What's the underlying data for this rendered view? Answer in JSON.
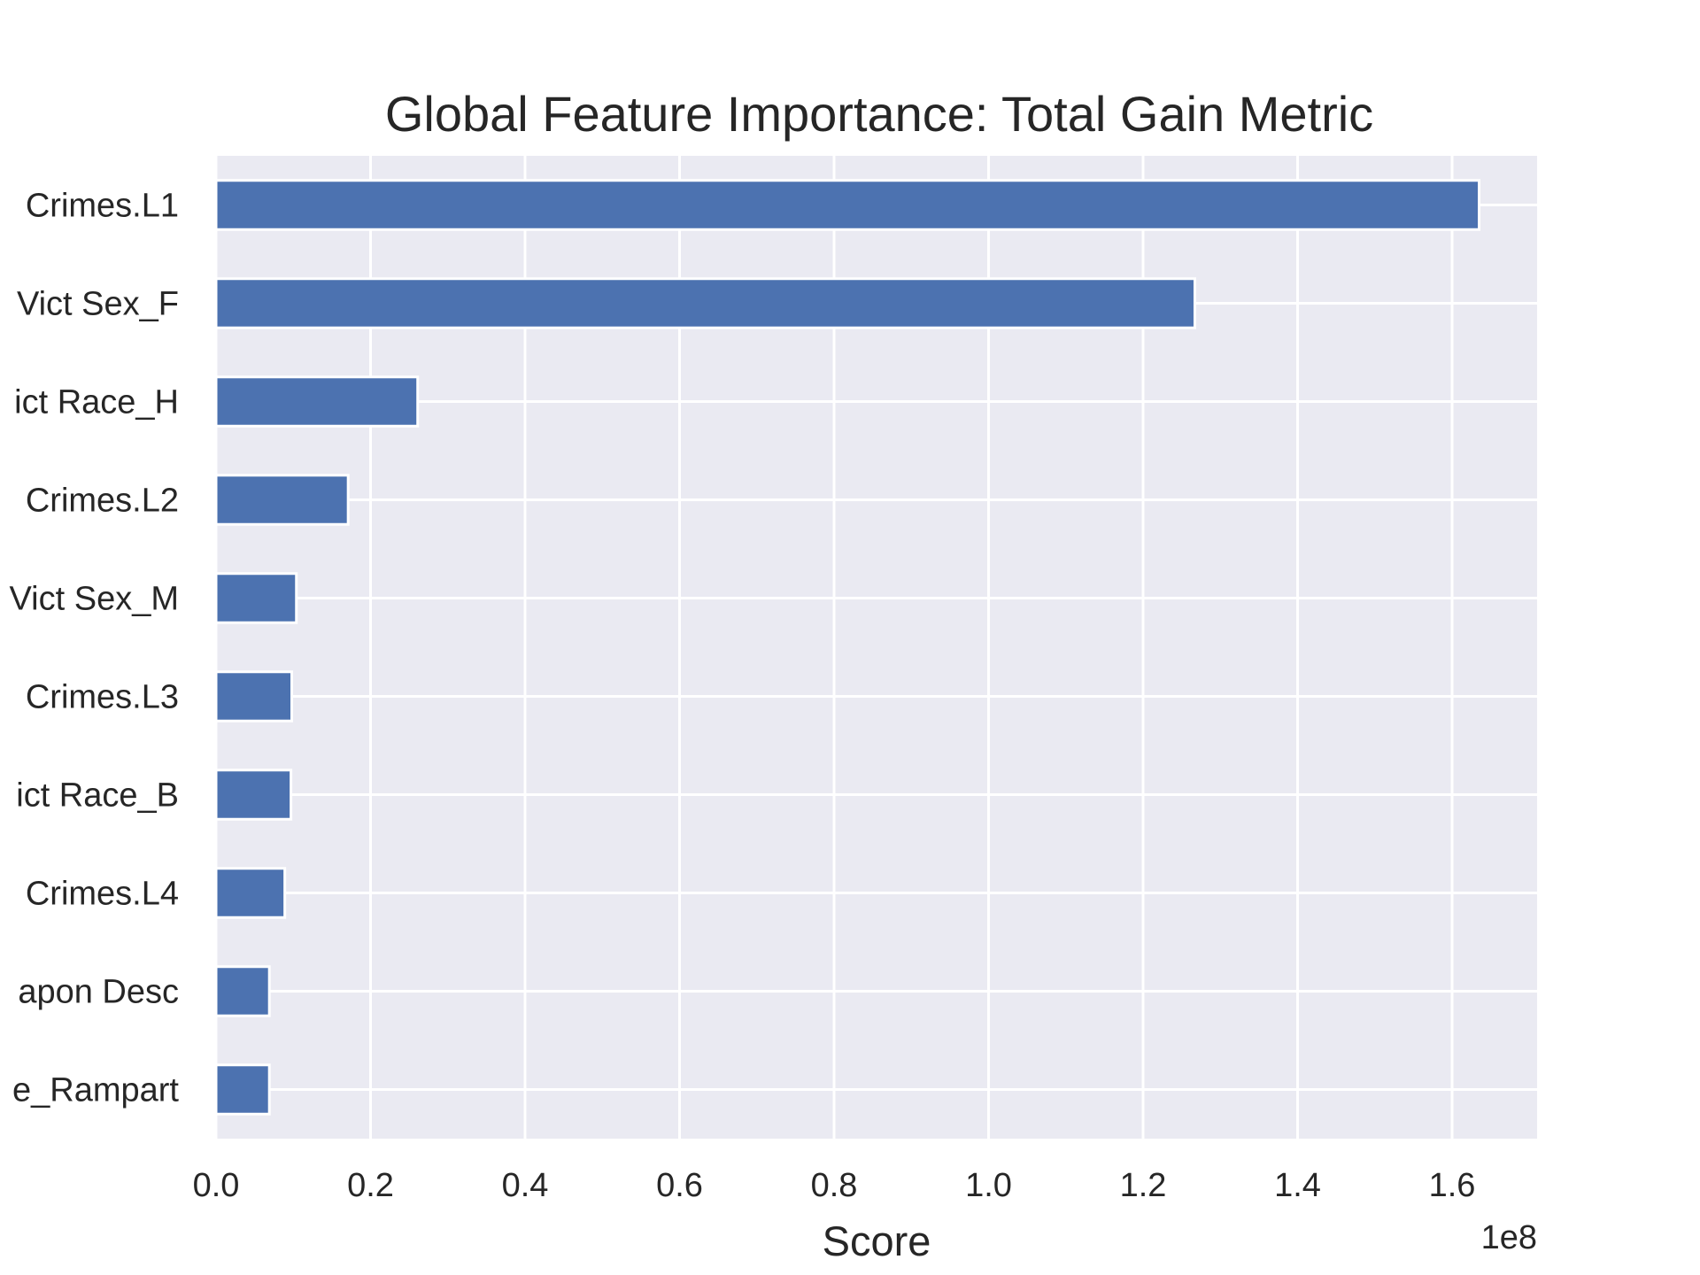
{
  "chart_data": {
    "type": "bar",
    "orientation": "horizontal",
    "title": "Global Feature Importance: Total Gain Metric",
    "xlabel": "Score",
    "ylabel": "",
    "x_offset_label": "1e8",
    "xlim": [
      0,
      171000000
    ],
    "xticks": [
      0,
      20000000,
      40000000,
      60000000,
      80000000,
      100000000,
      120000000,
      140000000,
      160000000
    ],
    "xtick_labels": [
      "0.0",
      "0.2",
      "0.4",
      "0.6",
      "0.8",
      "1.0",
      "1.2",
      "1.4",
      "1.6"
    ],
    "categories": [
      "Crimes.L1",
      "Vict Sex_F",
      "ict Race_H",
      "Crimes.L2",
      "Vict Sex_M",
      "Crimes.L3",
      "ict Race_B",
      "Crimes.L4",
      "apon Desc",
      "e_Rampart"
    ],
    "values": [
      163500000,
      126700000,
      26100000,
      17100000,
      10400000,
      9800000,
      9700000,
      8900000,
      6900000,
      6900000
    ],
    "grid": true,
    "legend": "none",
    "colors": {
      "bar": "#4c72b0",
      "background": "#eaeaf2",
      "grid": "#ffffff",
      "text": "#262626"
    }
  }
}
